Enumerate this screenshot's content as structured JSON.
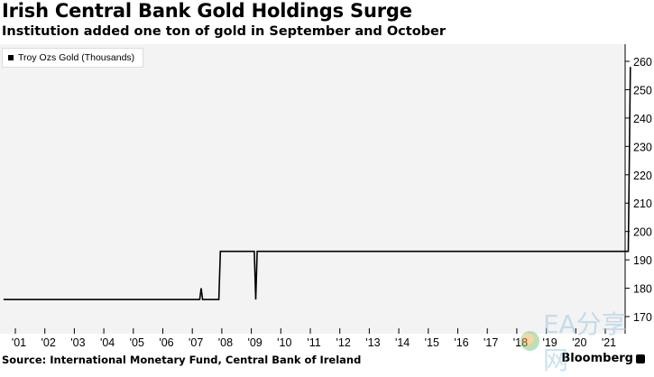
{
  "chart_data": {
    "type": "line",
    "title": "Irish Central Bank Gold Holdings Surge",
    "subtitle": "Institution added one ton of gold in September and October",
    "legend": [
      "Troy Ozs Gold (Thousands)"
    ],
    "legend_position": "top-left",
    "y_axis_side": "right",
    "ylim": [
      168,
      265
    ],
    "yticks": [
      170,
      180,
      190,
      200,
      210,
      220,
      230,
      240,
      250,
      260
    ],
    "xlim": [
      2000.6,
      2021.9
    ],
    "xtick_labels": [
      "'01",
      "'02",
      "'03",
      "'04",
      "'05",
      "'06",
      "'07",
      "'08",
      "'09",
      "'10",
      "'11",
      "'12",
      "'13",
      "'14",
      "'15",
      "'16",
      "'17",
      "'18",
      "'19",
      "'20",
      "'21"
    ],
    "grid": false,
    "series": [
      {
        "name": "Troy Ozs Gold (Thousands)",
        "x": [
          2000.6,
          2007.25,
          2007.3,
          2007.35,
          2007.9,
          2007.95,
          2009.1,
          2009.15,
          2009.2,
          2009.25,
          2021.78,
          2021.85
        ],
        "y": [
          176,
          176,
          180,
          176,
          176,
          193,
          193,
          176,
          193,
          193,
          193,
          258
        ]
      }
    ]
  },
  "colors": {
    "line": "#000000",
    "plot_background": "#f3f3f3",
    "axis": "#000000"
  },
  "footer": {
    "source": "Source: International Monetary Fund, Central Bank of Ireland",
    "brand": "Bloomberg"
  },
  "watermark": {
    "text": "EA分享网"
  }
}
